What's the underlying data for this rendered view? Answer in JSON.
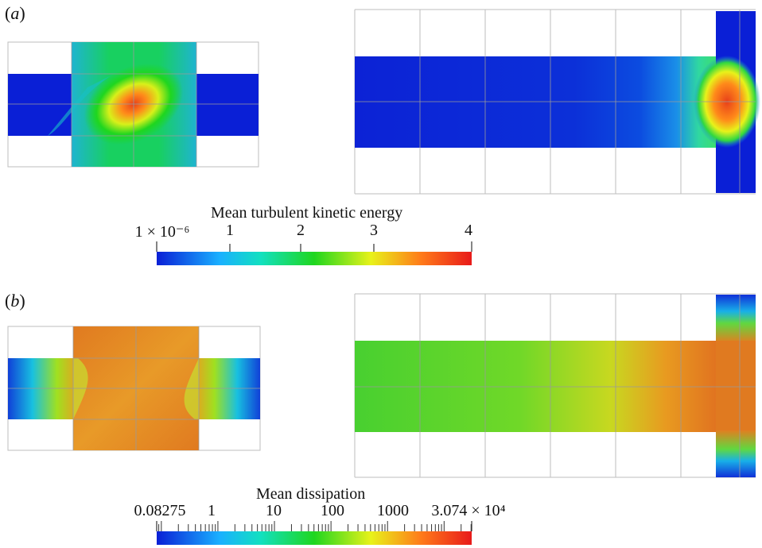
{
  "panel_a": {
    "label_prefix": "(",
    "label_letter": "a",
    "label_suffix": ")",
    "colorbar": {
      "title": "Mean turbulent kinetic energy",
      "ticks": [
        "1 × 10⁻⁶",
        "1",
        "2",
        "3",
        "4"
      ],
      "colors": [
        "#0a1fd6",
        "#1ab0ff",
        "#12e0c0",
        "#1fd61f",
        "#e8f21a",
        "#ff7a1a",
        "#e81a1a"
      ]
    }
  },
  "panel_b": {
    "label_prefix": "(",
    "label_letter": "b",
    "label_suffix": ")",
    "colorbar": {
      "title": "Mean dissipation",
      "ticks": [
        "0.08275",
        "1",
        "10",
        "100",
        "1000",
        "3.074 × 10⁴"
      ],
      "colors": [
        "#0a1fd6",
        "#1ab0ff",
        "#12e0c0",
        "#1fd61f",
        "#e8f21a",
        "#ff7a1a",
        "#e81a1a"
      ]
    }
  }
}
